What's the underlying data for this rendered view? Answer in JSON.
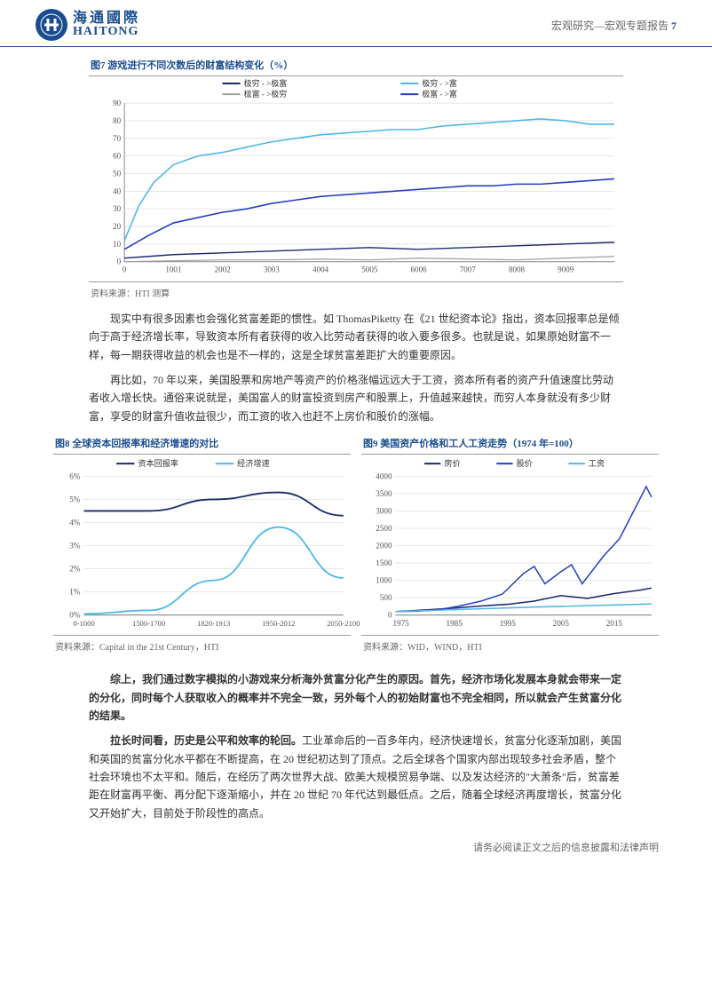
{
  "header": {
    "logo_cn": "海通國際",
    "logo_en": "HAITONG",
    "category": "宏观研究—宏观专题报告",
    "page_num": "7"
  },
  "fig7": {
    "title": "图7  游戏进行不同次数后的财富结构变化（%）",
    "source": "资料来源：HTI 测算",
    "type": "line",
    "xlim": [
      0,
      10000
    ],
    "ylim": [
      0,
      90
    ],
    "xticks": [
      0,
      1001,
      2002,
      3003,
      4004,
      5005,
      6006,
      7007,
      8008,
      9009
    ],
    "yticks": [
      0,
      10,
      20,
      30,
      40,
      50,
      60,
      70,
      80,
      90
    ],
    "background_color": "#ffffff",
    "grid_color": "#d0d0d0",
    "legend": [
      {
        "label": "极穷  -  >极富",
        "color": "#1a2a6c"
      },
      {
        "label": "极穷  -  >富",
        "color": "#4fb8e8"
      },
      {
        "label": "极富  -  >极穷",
        "color": "#9e9e9e"
      },
      {
        "label": "极富  -  >富",
        "color": "#2440c0"
      }
    ],
    "series": [
      {
        "color": "#1a2a6c",
        "width": 1.4,
        "x": [
          0,
          500,
          1000,
          2000,
          3000,
          4000,
          5000,
          6000,
          7000,
          8000,
          9000,
          10000
        ],
        "y": [
          2,
          3,
          4,
          5,
          6,
          7,
          8,
          7,
          8,
          9,
          10,
          11
        ]
      },
      {
        "color": "#4fb8e8",
        "width": 1.6,
        "x": [
          0,
          300,
          600,
          1000,
          1500,
          2000,
          2500,
          3000,
          3500,
          4000,
          4500,
          5000,
          5500,
          6000,
          6500,
          7000,
          7500,
          8000,
          8500,
          9000,
          9500,
          10000
        ],
        "y": [
          12,
          32,
          45,
          55,
          60,
          62,
          65,
          68,
          70,
          72,
          73,
          74,
          75,
          75,
          77,
          78,
          79,
          80,
          81,
          80,
          78,
          78
        ]
      },
      {
        "color": "#9e9e9e",
        "width": 1.2,
        "x": [
          0,
          1000,
          2000,
          3000,
          4000,
          5000,
          6000,
          7000,
          8000,
          9000,
          10000
        ],
        "y": [
          0,
          0.5,
          1,
          1,
          1.5,
          1,
          2,
          1.5,
          1,
          2,
          3
        ]
      },
      {
        "color": "#2440c0",
        "width": 1.6,
        "x": [
          0,
          500,
          1000,
          1500,
          2000,
          2500,
          3000,
          3500,
          4000,
          4500,
          5000,
          5500,
          6000,
          6500,
          7000,
          7500,
          8000,
          8500,
          9000,
          9500,
          10000
        ],
        "y": [
          7,
          15,
          22,
          25,
          28,
          30,
          33,
          35,
          37,
          38,
          39,
          40,
          41,
          42,
          43,
          43,
          44,
          44,
          45,
          46,
          47
        ]
      }
    ]
  },
  "para1": "现实中有很多因素也会强化贫富差距的惯性。如 ThomasPiketty 在《21 世纪资本论》指出，资本回报率总是倾向于高于经济增长率，导致资本所有者获得的收入比劳动者获得的收入要多很多。也就是说，如果原始财富不一样，每一期获得收益的机会也是不一样的，这是全球贫富差距扩大的重要原因。",
  "para2": "再比如，70 年以来，美国股票和房地产等资产的价格涨幅远远大于工资，资本所有者的资产升值速度比劳动者收入增长快。通俗来说就是，美国富人的财富投资到房产和股票上，升值越来越快，而穷人本身就没有多少财富，享受的财富升值收益很少，而工资的收入也赶不上房价和股价的涨幅。",
  "fig8": {
    "title": "图8  全球资本回报率和经济增速的对比",
    "source": "资料来源：Capital in the 21st Century，HTI",
    "type": "line",
    "xcats": [
      "0-1000",
      "1500-1700",
      "1820-1913",
      "1950-2012",
      "2050-2100"
    ],
    "ylim": [
      0,
      6
    ],
    "yticks": [
      0,
      1,
      2,
      3,
      4,
      5,
      6
    ],
    "yfmt": "%",
    "legend": [
      {
        "label": "资本回报率",
        "color": "#1a2a6c"
      },
      {
        "label": "经济增速",
        "color": "#4fb8e8"
      }
    ],
    "series": [
      {
        "color": "#1a2a6c",
        "width": 1.8,
        "y": [
          4.5,
          4.5,
          5.0,
          5.3,
          4.3
        ]
      },
      {
        "color": "#4fb8e8",
        "width": 1.8,
        "y": [
          0.05,
          0.2,
          1.5,
          3.8,
          1.6
        ]
      }
    ]
  },
  "fig9": {
    "title": "图9  美国资产价格和工人工资走势（1974 年=100）",
    "source": "资料来源：WID，WIND，HTI",
    "type": "line",
    "xlim": [
      1974,
      2022
    ],
    "xticks": [
      1975,
      1985,
      1995,
      2005,
      2015
    ],
    "ylim": [
      0,
      4000
    ],
    "yticks": [
      0,
      500,
      1000,
      1500,
      2000,
      2500,
      3000,
      3500,
      4000
    ],
    "legend": [
      {
        "label": "房价",
        "color": "#1a2a6c"
      },
      {
        "label": "股价",
        "color": "#2440c0"
      },
      {
        "label": "工资",
        "color": "#4fb8e8"
      }
    ],
    "series": [
      {
        "color": "#1a2a6c",
        "width": 1.5,
        "x": [
          1974,
          1980,
          1985,
          1990,
          1995,
          2000,
          2005,
          2010,
          2015,
          2020,
          2022
        ],
        "y": [
          100,
          150,
          200,
          260,
          310,
          400,
          560,
          480,
          620,
          720,
          780
        ]
      },
      {
        "color": "#2440c0",
        "width": 1.5,
        "x": [
          1974,
          1978,
          1982,
          1986,
          1990,
          1994,
          1998,
          2000,
          2002,
          2005,
          2007,
          2009,
          2013,
          2016,
          2018,
          2020,
          2021,
          2022
        ],
        "y": [
          100,
          110,
          150,
          260,
          400,
          600,
          1200,
          1400,
          900,
          1250,
          1450,
          900,
          1700,
          2200,
          2800,
          3400,
          3700,
          3400
        ]
      },
      {
        "color": "#4fb8e8",
        "width": 1.5,
        "x": [
          1974,
          1980,
          1990,
          2000,
          2010,
          2020,
          2022
        ],
        "y": [
          100,
          130,
          180,
          230,
          270,
          310,
          320
        ]
      }
    ]
  },
  "para3": "综上，我们通过数字模拟的小游戏来分析海外贫富分化产生的原因。首先，经济市场化发展本身就会带来一定的分化，同时每个人获取收入的概率并不完全一致，另外每个人的初始财富也不完全相同，所以就会产生贫富分化的结果。",
  "para4_lead": "拉长时间看，历史是公平和效率的轮回。",
  "para4_rest": "工业革命后的一百多年内，经济快速增长，贫富分化逐渐加剧，美国和英国的贫富分化水平都在不断提高，在 20 世纪初达到了顶点。之后全球各个国家内部出现较多社会矛盾，整个社会环境也不太平和。随后，在经历了两次世界大战、欧美大规模贸易争端、以及发达经济的\"大萧条\"后，贫富差距在财富再平衡、再分配下逐渐缩小，并在 20 世纪 70 年代达到最低点。之后，随着全球经济再度增长，贫富分化又开始扩大，目前处于阶段性的高点。",
  "footer": "请务必阅读正文之后的信息披露和法律声明"
}
